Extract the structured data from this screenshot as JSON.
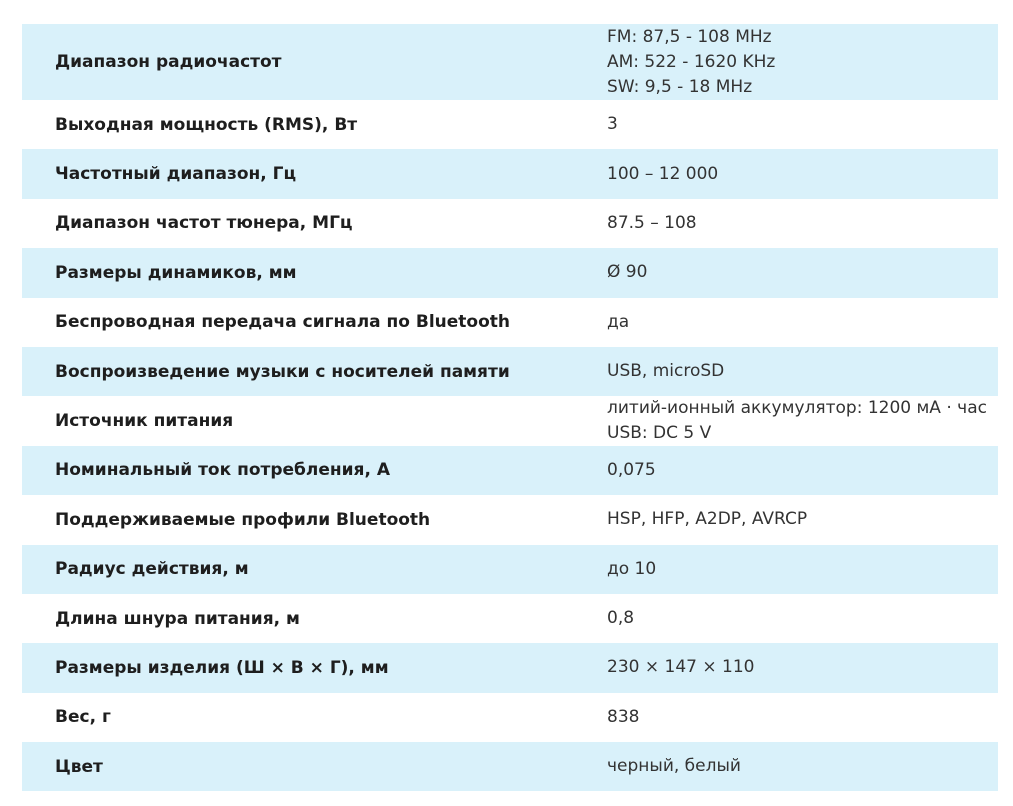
{
  "colors": {
    "row_shaded": "#d9f1fa",
    "row_plain": "#ffffff",
    "label_text": "#1e1e1e",
    "value_text": "#333333"
  },
  "rows": [
    {
      "label": "Диапазон радиочастот",
      "values": [
        "FM: 87,5 - 108 MHz",
        "AM: 522 - 1620 KHz",
        "SW: 9,5 - 18 MHz"
      ]
    },
    {
      "label": "Выходная мощность (RMS), Вт",
      "values": [
        "3"
      ]
    },
    {
      "label": "Частотный диапазон, Гц",
      "values": [
        "100 – 12 000"
      ]
    },
    {
      "label": "Диапазон частот тюнера, МГц",
      "values": [
        "87.5 – 108"
      ]
    },
    {
      "label": "Размеры динамиков, мм",
      "values": [
        "Ø 90"
      ]
    },
    {
      "label": "Беспроводная передача сигнала по Bluetooth",
      "values": [
        "да"
      ]
    },
    {
      "label": "Воспроизведение музыки с носителей памяти",
      "values": [
        "USB, microSD"
      ]
    },
    {
      "label": "Источник питания",
      "values": [
        "литий-ионный аккумулятор: 1200 мА · час",
        "USB: DC 5 V"
      ]
    },
    {
      "label": "Номинальный ток потребления, А",
      "values": [
        "0,075"
      ]
    },
    {
      "label": "Поддерживаемые профили Bluetooth",
      "values": [
        "HSP, HFP, A2DP, AVRCP"
      ]
    },
    {
      "label": "Радиус действия, м",
      "values": [
        "до 10"
      ]
    },
    {
      "label": "Длина шнура питания, м",
      "values": [
        "0,8"
      ]
    },
    {
      "label": "Размеры изделия (Ш × В × Г), мм",
      "values": [
        "230 × 147 × 110"
      ]
    },
    {
      "label": "Вес, г",
      "values": [
        "838"
      ]
    },
    {
      "label": "Цвет",
      "values": [
        "черный, белый"
      ]
    }
  ]
}
